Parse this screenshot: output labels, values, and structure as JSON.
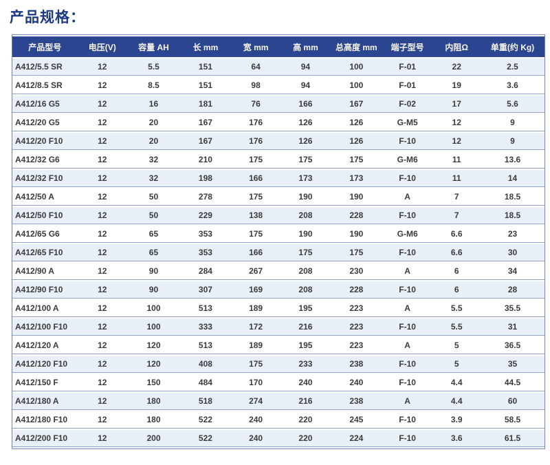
{
  "page": {
    "title": "产品规格："
  },
  "colors": {
    "title_text": "#1d3a85",
    "header_bg": "#2c4590",
    "header_text": "#f8f6ec",
    "row_alt_bg": "#e9eff6",
    "row_bg": "#ffffff",
    "row_divider": "#8fa3cc",
    "outer_border": "#6e86ba",
    "cell_text": "#3b3b3b"
  },
  "table": {
    "headers": [
      "产品型号",
      "电压(V)",
      "容量 AH",
      "长 mm",
      "宽 mm",
      "高 mm",
      "总高度 mm",
      "端子型号",
      "内阻Ω",
      "单重(约 Kg)"
    ],
    "rows": [
      [
        "A412/5.5 SR",
        "12",
        "5.5",
        "151",
        "64",
        "94",
        "100",
        "F-01",
        "22",
        "2.5"
      ],
      [
        "A412/8.5 SR",
        "12",
        "8.5",
        "151",
        "98",
        "94",
        "100",
        "F-01",
        "19",
        "3.6"
      ],
      [
        "A412/16 G5",
        "12",
        "16",
        "181",
        "76",
        "166",
        "167",
        "F-02",
        "17",
        "5.6"
      ],
      [
        "A412/20 G5",
        "12",
        "20",
        "167",
        "176",
        "126",
        "126",
        "G-M5",
        "12",
        "9"
      ],
      [
        "A412/20 F10",
        "12",
        "20",
        "167",
        "176",
        "126",
        "126",
        "F-10",
        "12",
        "9"
      ],
      [
        "A412/32 G6",
        "12",
        "32",
        "210",
        "175",
        "175",
        "175",
        "G-M6",
        "11",
        "13.6"
      ],
      [
        "A412/32 F10",
        "12",
        "32",
        "198",
        "166",
        "173",
        "173",
        "F-10",
        "11",
        "14"
      ],
      [
        "A412/50 A",
        "12",
        "50",
        "278",
        "175",
        "190",
        "190",
        "A",
        "7",
        "18.5"
      ],
      [
        "A412/50 F10",
        "12",
        "50",
        "229",
        "138",
        "208",
        "228",
        "F-10",
        "7",
        "18.5"
      ],
      [
        "A412/65 G6",
        "12",
        "65",
        "353",
        "175",
        "190",
        "190",
        "G-M6",
        "6.6",
        "23"
      ],
      [
        "A412/65 F10",
        "12",
        "65",
        "353",
        "166",
        "175",
        "175",
        "F-10",
        "6.6",
        "30"
      ],
      [
        "A412/90 A",
        "12",
        "90",
        "284",
        "267",
        "208",
        "230",
        "A",
        "6",
        "34"
      ],
      [
        "A412/90 F10",
        "12",
        "90",
        "307",
        "169",
        "208",
        "228",
        "F-10",
        "6",
        "28"
      ],
      [
        "A412/100 A",
        "12",
        "100",
        "513",
        "189",
        "195",
        "223",
        "A",
        "5.5",
        "35.5"
      ],
      [
        "A412/100 F10",
        "12",
        "100",
        "333",
        "172",
        "216",
        "223",
        "F-10",
        "5.5",
        "31"
      ],
      [
        "A412/120 A",
        "12",
        "120",
        "513",
        "189",
        "195",
        "223",
        "A",
        "5",
        "36.5"
      ],
      [
        "A412/120 F10",
        "12",
        "120",
        "408",
        "175",
        "233",
        "238",
        "F-10",
        "5",
        "35"
      ],
      [
        "A412/150 F",
        "12",
        "150",
        "484",
        "170",
        "240",
        "240",
        "F-10",
        "4.4",
        "44.5"
      ],
      [
        "A412/180 A",
        "12",
        "180",
        "518",
        "274",
        "216",
        "238",
        "A",
        "4.4",
        "60"
      ],
      [
        "A412/180 F10",
        "12",
        "180",
        "522",
        "240",
        "220",
        "245",
        "F-10",
        "3.9",
        "58.5"
      ],
      [
        "A412/200 F10",
        "12",
        "200",
        "522",
        "240",
        "220",
        "224",
        "F-10",
        "3.6",
        "61.5"
      ]
    ]
  }
}
